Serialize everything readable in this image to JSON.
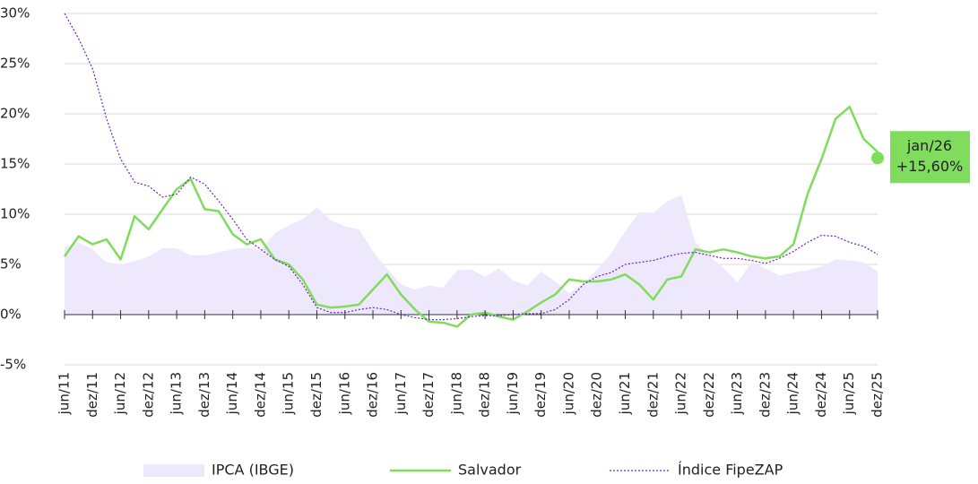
{
  "chart_data": {
    "type": "line",
    "categories": [
      "jun/11",
      null,
      "dez/11",
      null,
      "jun/12",
      null,
      "dez/12",
      null,
      "jun/13",
      null,
      "dez/13",
      null,
      "jun/14",
      null,
      "dez/14",
      null,
      "jun/15",
      null,
      "dez/15",
      null,
      "jun/16",
      null,
      "dez/16",
      null,
      "jun/17",
      null,
      "dez/17",
      null,
      "jun/18",
      null,
      "dez/18",
      null,
      "jun/19",
      null,
      "dez/19",
      null,
      "jun/20",
      null,
      "dez/20",
      null,
      "jun/21",
      null,
      "dez/21",
      null,
      "jun/22",
      null,
      "dez/22",
      null,
      "jun/23",
      null,
      "dez/23",
      null,
      "jun/24",
      null,
      "dez/24",
      null,
      "jun/25",
      null,
      "dez/25"
    ],
    "series": [
      {
        "name": "IPCA (IBGE)",
        "style": "area",
        "color": "#ede8fb",
        "values": [
          6.7,
          7.2,
          6.5,
          5.2,
          5.0,
          5.3,
          5.8,
          6.6,
          6.6,
          5.9,
          5.9,
          6.2,
          6.5,
          6.7,
          6.4,
          8.1,
          8.9,
          9.5,
          10.7,
          9.4,
          8.8,
          8.5,
          6.3,
          4.6,
          3.0,
          2.5,
          2.9,
          2.7,
          4.4,
          4.5,
          3.8,
          4.6,
          3.4,
          2.9,
          4.3,
          3.3,
          2.1,
          3.1,
          4.5,
          6.1,
          8.3,
          10.2,
          10.1,
          11.3,
          11.9,
          7.2,
          5.8,
          4.7,
          3.2,
          5.2,
          4.6,
          3.9,
          4.2,
          4.4,
          4.8,
          5.5,
          5.4,
          5.2,
          4.3
        ]
      },
      {
        "name": "Salvador",
        "style": "solid",
        "color": "#7fdc5c",
        "values": [
          5.8,
          7.8,
          7.0,
          7.5,
          5.5,
          9.8,
          8.5,
          10.5,
          12.5,
          13.5,
          10.5,
          10.3,
          8.0,
          7.0,
          7.5,
          5.5,
          5.0,
          3.5,
          1.0,
          0.7,
          0.8,
          1.0,
          2.5,
          4.0,
          2.0,
          0.5,
          -0.7,
          -0.8,
          -1.2,
          0.0,
          0.2,
          -0.2,
          -0.5,
          0.3,
          1.2,
          2.0,
          3.5,
          3.3,
          3.3,
          3.5,
          4.0,
          3.0,
          1.5,
          3.5,
          3.8,
          6.5,
          6.2,
          6.5,
          6.2,
          5.8,
          5.6,
          5.8,
          7.0,
          12.0,
          15.5,
          19.5,
          20.7,
          17.5,
          16.2
        ]
      },
      {
        "name": "Índice FipeZAP",
        "style": "dotted",
        "color": "#6a22c9",
        "values": [
          30,
          27.5,
          24.5,
          19.5,
          15.5,
          13.2,
          12.8,
          11.7,
          12.0,
          13.7,
          13.0,
          11.3,
          9.5,
          7.5,
          6.5,
          5.5,
          4.8,
          3.0,
          0.7,
          0.2,
          0.2,
          0.5,
          0.7,
          0.5,
          0.0,
          -0.3,
          -0.5,
          -0.5,
          -0.4,
          -0.2,
          -0.1,
          -0.1,
          0.0,
          0.1,
          0.1,
          0.5,
          1.5,
          3.0,
          3.8,
          4.2,
          5.0,
          5.2,
          5.4,
          5.8,
          6.1,
          6.2,
          5.9,
          5.6,
          5.6,
          5.4,
          5.1,
          5.6,
          6.3,
          7.2,
          7.9,
          7.8,
          7.2,
          6.8,
          6.0
        ]
      }
    ],
    "ylim": [
      -5,
      30
    ],
    "yticks": [
      {
        "value": -5,
        "label": "-5%"
      },
      {
        "value": 0,
        "label": "0%"
      },
      {
        "value": 5,
        "label": "5%"
      },
      {
        "value": 10,
        "label": "10%"
      },
      {
        "value": 15,
        "label": "15%"
      },
      {
        "value": 20,
        "label": "20%"
      },
      {
        "value": 25,
        "label": "25%"
      },
      {
        "value": 30,
        "label": "30%"
      }
    ],
    "grid": true,
    "legend": "bottom",
    "annotation": {
      "text": "jan/26",
      "value": 15.6,
      "value_label": "+15,60%",
      "color": "#7fdc5c"
    }
  }
}
